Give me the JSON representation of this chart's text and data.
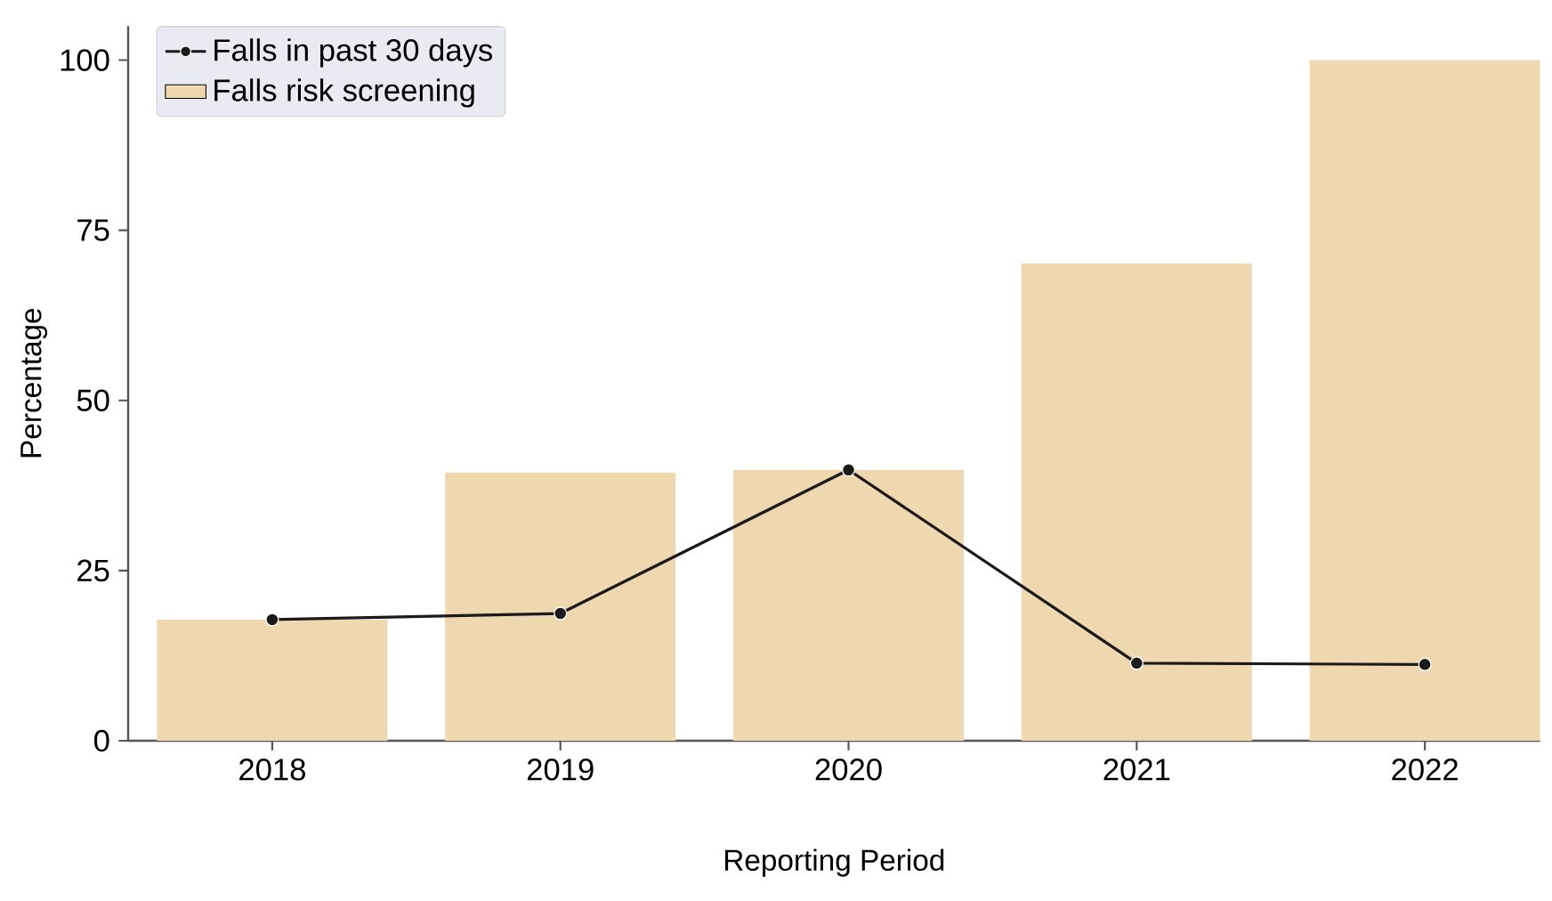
{
  "chart_data": {
    "type": "bar",
    "xlabel": "Reporting Period",
    "ylabel": "Percentage",
    "categories": [
      "2018",
      "2019",
      "2020",
      "2021",
      "2022"
    ],
    "series": [
      {
        "name": "Falls in past 30 days",
        "type": "line",
        "color": "#1a1a1a",
        "marker": "circle",
        "values": [
          17.8,
          18.7,
          39.8,
          11.4,
          11.2
        ]
      },
      {
        "name": "Falls risk screening",
        "color": "#efd7b0",
        "values": [
          17.8,
          39.4,
          39.8,
          70.1,
          100
        ]
      }
    ],
    "ylim": [
      0,
      105
    ],
    "yticks": [
      0,
      25,
      50,
      75,
      100
    ],
    "grid": false,
    "legend": "top left"
  }
}
